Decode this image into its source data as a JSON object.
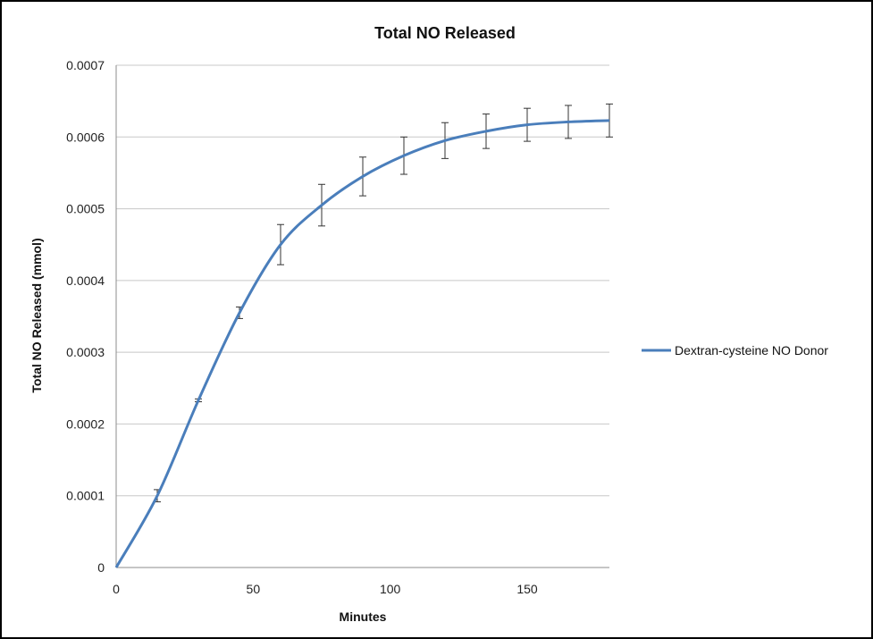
{
  "chart_data": {
    "type": "line",
    "title": "Total NO Released",
    "xlabel": "Minutes",
    "ylabel": "Total NO Released (mmol)",
    "xlim": [
      0,
      180
    ],
    "ylim": [
      0,
      0.0007
    ],
    "x_ticks": [
      0,
      50,
      100,
      150
    ],
    "x_tick_labels": [
      "0",
      "50",
      "100",
      "150"
    ],
    "y_ticks": [
      0,
      0.0001,
      0.0002,
      0.0003,
      0.0004,
      0.0005,
      0.0006,
      0.0007
    ],
    "y_tick_labels": [
      "0",
      "0.0001",
      "0.0002",
      "0.0003",
      "0.0004",
      "0.0005",
      "0.0006",
      "0.0007"
    ],
    "grid": "horizontal",
    "legend_position": "right",
    "series": [
      {
        "name": "Dextran-cysteine NO Donor",
        "color": "#4a7ebb",
        "smooth": true,
        "points": [
          {
            "x": 0,
            "y": 0,
            "err": 0
          },
          {
            "x": 15,
            "y": 0.0001,
            "err": 8.5e-06
          },
          {
            "x": 30,
            "y": 0.000233,
            "err": 2e-06
          },
          {
            "x": 45,
            "y": 0.000355,
            "err": 8e-06
          },
          {
            "x": 60,
            "y": 0.00045,
            "err": 2.8e-05
          },
          {
            "x": 75,
            "y": 0.000505,
            "err": 2.9e-05
          },
          {
            "x": 90,
            "y": 0.000545,
            "err": 2.7e-05
          },
          {
            "x": 105,
            "y": 0.000574,
            "err": 2.6e-05
          },
          {
            "x": 120,
            "y": 0.000595,
            "err": 2.5e-05
          },
          {
            "x": 135,
            "y": 0.000608,
            "err": 2.4e-05
          },
          {
            "x": 150,
            "y": 0.000617,
            "err": 2.3e-05
          },
          {
            "x": 165,
            "y": 0.000621,
            "err": 2.3e-05
          },
          {
            "x": 180,
            "y": 0.000623,
            "err": 2.3e-05
          }
        ]
      }
    ]
  }
}
